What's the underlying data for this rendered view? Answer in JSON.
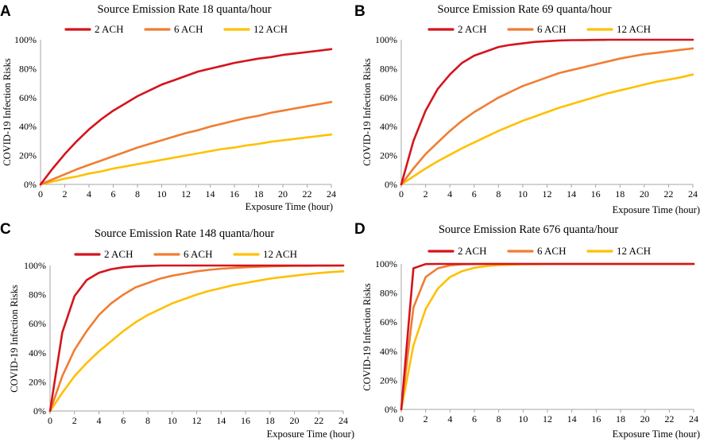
{
  "colors": {
    "2 ACH": "#d4141c",
    "6 ACH": "#f07d32",
    "12 ACH": "#ffc000"
  },
  "chart_data": [
    {
      "type": "line",
      "panel": "A",
      "title": "Source Emission Rate 18 quanta/hour",
      "xlabel": "Exposure Time (hour)",
      "ylabel": "COVID-19 Infection Risks",
      "x": [
        0,
        1,
        2,
        3,
        4,
        5,
        6,
        7,
        8,
        9,
        10,
        11,
        12,
        13,
        14,
        15,
        16,
        17,
        18,
        19,
        20,
        21,
        22,
        23,
        24
      ],
      "xticks": [
        "0",
        "2",
        "4",
        "6",
        "8",
        "10",
        "12",
        "14",
        "16",
        "18",
        "20",
        "22",
        "24"
      ],
      "yticks": [
        "0%",
        "20%",
        "40%",
        "60%",
        "80%",
        "100%"
      ],
      "xlim": [
        0,
        24
      ],
      "ylim": [
        0,
        100
      ],
      "legend": [
        "2 ACH",
        "6 ACH",
        "12 ACH"
      ],
      "series": [
        {
          "name": "2 ACH",
          "values": [
            0,
            11,
            21,
            30,
            38,
            45,
            51,
            56,
            61,
            65,
            69,
            72,
            75,
            78,
            80,
            82,
            84,
            85.5,
            87,
            88,
            89.5,
            90.5,
            91.5,
            92.5,
            93.5
          ]
        },
        {
          "name": "6 ACH",
          "values": [
            0,
            3.5,
            7,
            10.5,
            13.5,
            16.5,
            19.5,
            22.5,
            25.5,
            28,
            30.5,
            33,
            35.5,
            37.5,
            40,
            42,
            44,
            46,
            47.5,
            49.5,
            51,
            52.5,
            54,
            55.5,
            57
          ]
        },
        {
          "name": "12 ACH",
          "values": [
            0,
            2,
            4,
            5.5,
            7.5,
            9,
            11,
            12.5,
            14,
            15.5,
            17,
            18.5,
            20,
            21.5,
            23,
            24.5,
            25.5,
            27,
            28,
            29.5,
            30.5,
            31.5,
            32.5,
            33.5,
            34.5
          ]
        }
      ]
    },
    {
      "type": "line",
      "panel": "B",
      "title": "Source Emission Rate 69 quanta/hour",
      "xlabel": "Exposure Time (hour)",
      "ylabel": "COVID-19 Infection Risks",
      "x": [
        0,
        1,
        2,
        3,
        4,
        5,
        6,
        7,
        8,
        9,
        10,
        11,
        12,
        13,
        14,
        15,
        16,
        17,
        18,
        19,
        20,
        21,
        22,
        23,
        24
      ],
      "xticks": [
        "0",
        "2",
        "4",
        "6",
        "8",
        "10",
        "12",
        "14",
        "16",
        "18",
        "20",
        "22",
        "24"
      ],
      "yticks": [
        "0%",
        "20%",
        "40%",
        "60%",
        "80%",
        "100%"
      ],
      "xlim": [
        0,
        24
      ],
      "ylim": [
        0,
        100
      ],
      "legend": [
        "2 ACH",
        "6 ACH",
        "12 ACH"
      ],
      "series": [
        {
          "name": "2 ACH",
          "values": [
            0,
            30,
            51,
            66,
            76,
            84,
            89,
            92,
            95,
            96.5,
            97.5,
            98.5,
            99,
            99.5,
            99.7,
            99.8,
            99.9,
            100,
            100,
            100,
            100,
            100,
            100,
            100,
            100
          ]
        },
        {
          "name": "6 ACH",
          "values": [
            0,
            11,
            21,
            29,
            37,
            44,
            50,
            55,
            60,
            64,
            68,
            71,
            74,
            77,
            79,
            81,
            83,
            85,
            87,
            88.5,
            90,
            91,
            92,
            93,
            94
          ]
        },
        {
          "name": "12 ACH",
          "values": [
            0,
            5.5,
            11,
            16,
            20.5,
            25,
            29,
            33,
            37,
            40.5,
            44,
            47,
            50,
            53,
            55.5,
            58,
            60.5,
            63,
            65,
            67,
            69,
            71,
            72.5,
            74,
            76
          ]
        }
      ]
    },
    {
      "type": "line",
      "panel": "C",
      "title": "Source Emission Rate 148 quanta/hour",
      "xlabel": "Exposure Time (hour)",
      "ylabel": "COVID-19 Infection Risks",
      "x": [
        0,
        1,
        2,
        3,
        4,
        5,
        6,
        7,
        8,
        9,
        10,
        11,
        12,
        13,
        14,
        15,
        16,
        17,
        18,
        19,
        20,
        21,
        22,
        23,
        24
      ],
      "xticks": [
        "0",
        "2",
        "4",
        "6",
        "8",
        "10",
        "12",
        "14",
        "16",
        "18",
        "20",
        "22",
        "24"
      ],
      "yticks": [
        "0%",
        "20%",
        "40%",
        "60%",
        "80%",
        "100%"
      ],
      "xlim": [
        0,
        24
      ],
      "ylim": [
        0,
        100
      ],
      "legend": [
        "2 ACH",
        "6 ACH",
        "12 ACH"
      ],
      "series": [
        {
          "name": "2 ACH",
          "values": [
            0,
            54,
            79,
            90,
            95,
            97.5,
            98.8,
            99.5,
            99.8,
            100,
            100,
            100,
            100,
            100,
            100,
            100,
            100,
            100,
            100,
            100,
            100,
            100,
            100,
            100,
            100
          ]
        },
        {
          "name": "6 ACH",
          "values": [
            0,
            24,
            42,
            55,
            66,
            74,
            80,
            85,
            88,
            91,
            93,
            94.5,
            96,
            97,
            97.8,
            98.3,
            98.8,
            99.1,
            99.4,
            99.6,
            99.7,
            99.8,
            99.9,
            99.9,
            100
          ]
        },
        {
          "name": "12 ACH",
          "values": [
            0,
            12.5,
            24,
            33,
            41,
            48,
            55,
            61,
            66,
            70,
            74,
            77,
            80,
            82.5,
            84.5,
            86.5,
            88,
            89.5,
            91,
            92,
            93,
            94,
            94.8,
            95.5,
            96
          ]
        }
      ]
    },
    {
      "type": "line",
      "panel": "D",
      "title": "Source Emission Rate 676 quanta/hour",
      "xlabel": "Exposure Time (hour)",
      "ylabel": "COVID-19 Infection Risks",
      "x": [
        0,
        1,
        2,
        3,
        4,
        5,
        6,
        7,
        8,
        9,
        10,
        11,
        12,
        13,
        14,
        15,
        16,
        17,
        18,
        19,
        20,
        21,
        22,
        23,
        24
      ],
      "xticks": [
        "0",
        "2",
        "4",
        "6",
        "8",
        "10",
        "12",
        "14",
        "16",
        "18",
        "20",
        "22",
        "24"
      ],
      "yticks": [
        "0%",
        "20%",
        "40%",
        "60%",
        "80%",
        "100%"
      ],
      "xlim": [
        0,
        24
      ],
      "ylim": [
        0,
        100
      ],
      "legend": [
        "2 ACH",
        "6 ACH",
        "12 ACH"
      ],
      "series": [
        {
          "name": "2 ACH",
          "values": [
            0,
            97,
            99.9,
            100,
            100,
            100,
            100,
            100,
            100,
            100,
            100,
            100,
            100,
            100,
            100,
            100,
            100,
            100,
            100,
            100,
            100,
            100,
            100,
            100,
            100
          ]
        },
        {
          "name": "6 ACH",
          "values": [
            0,
            70,
            91,
            97,
            99,
            99.7,
            99.9,
            100,
            100,
            100,
            100,
            100,
            100,
            100,
            100,
            100,
            100,
            100,
            100,
            100,
            100,
            100,
            100,
            100,
            100
          ]
        },
        {
          "name": "12 ACH",
          "values": [
            0,
            44,
            69,
            83,
            91,
            95,
            97.3,
            98.5,
            99.2,
            99.5,
            99.7,
            99.8,
            99.9,
            100,
            100,
            100,
            100,
            100,
            100,
            100,
            100,
            100,
            100,
            100,
            100
          ]
        }
      ]
    }
  ]
}
